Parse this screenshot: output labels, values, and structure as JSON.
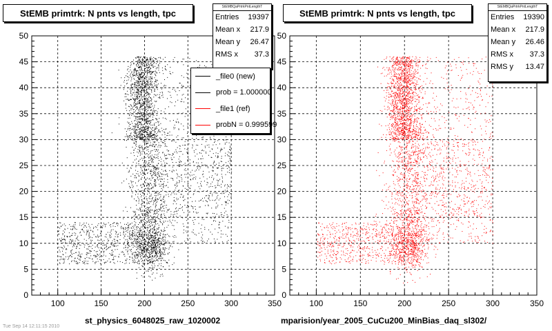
{
  "chart_data": [
    {
      "type": "scatter",
      "title": "StEMB primtrk: N pnts vs length, tpc",
      "xlabel": "st_physics_6048025_raw_1020002",
      "ylabel": "",
      "xlim": [
        70,
        350
      ],
      "ylim": [
        0,
        50
      ],
      "xticks": [
        100,
        150,
        200,
        250,
        300,
        350
      ],
      "yticks": [
        0,
        5,
        10,
        15,
        20,
        25,
        30,
        35,
        40,
        45,
        50
      ],
      "grid": true,
      "color": "#000000",
      "stats": {
        "header": "StEMBQaPrtrkPntLengthT",
        "entries_label": "Entries",
        "entries": "19397",
        "mean_x_label": "Mean x",
        "mean_x": "217.9",
        "mean_y_label": "Mean y",
        "mean_y": "26.47",
        "rms_x_label": "RMS x",
        "rms_x": "37.3"
      },
      "legend": {
        "placement": "top-right",
        "entries": [
          {
            "label": "_file0 (new)",
            "color": "#000000"
          },
          {
            "label": "prob = 1.000000",
            "color": "#000000"
          },
          {
            "label": "_file1 (ref)",
            "color": "#ff0000"
          },
          {
            "label": "probN = 0.999599",
            "color": "#ff0000"
          }
        ]
      }
    },
    {
      "type": "scatter",
      "title": "StEMB primtrk: N pnts vs length, tpc",
      "xlabel": "mparision/year_2005_CuCu200_MinBias_daq_sl302/",
      "ylabel": "",
      "xlim": [
        70,
        350
      ],
      "ylim": [
        0,
        50
      ],
      "xticks": [
        100,
        150,
        200,
        250,
        300,
        350
      ],
      "yticks": [
        0,
        5,
        10,
        15,
        20,
        25,
        30,
        35,
        40,
        45,
        50
      ],
      "grid": true,
      "color": "#ff0000",
      "stats": {
        "header": "StEMBQaPrtrkPntLengthT",
        "entries_label": "Entries",
        "entries": "19390",
        "mean_x_label": "Mean x",
        "mean_x": "217.9",
        "mean_y_label": "Mean y",
        "mean_y": "26.46",
        "rms_x_label": "RMS x",
        "rms_x": "37.3",
        "rms_y_label": "RMS y",
        "rms_y": "13.47"
      }
    }
  ],
  "footer": "Tue Sep 14 12:11:15 2010"
}
